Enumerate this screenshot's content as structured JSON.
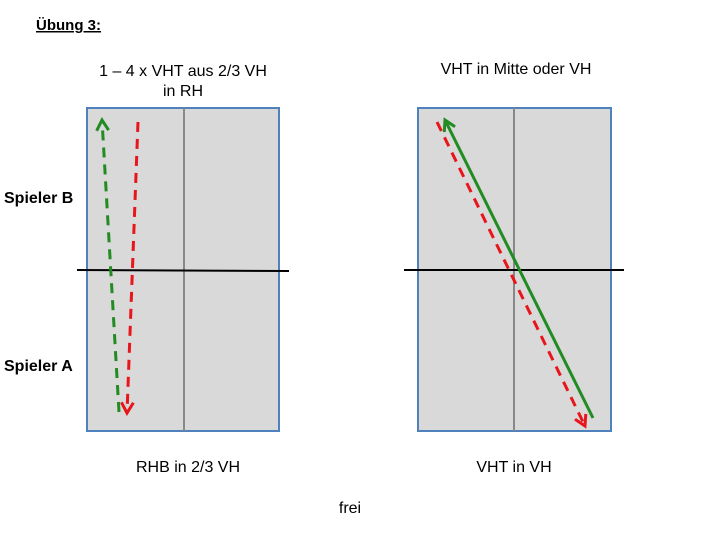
{
  "header": {
    "title": "Übung 3:"
  },
  "players": {
    "top": "Spieler B",
    "bottom": "Spieler A"
  },
  "tables": [
    {
      "top_caption_lines": [
        "1 – 4 x VHT aus 2/3 VH",
        "in RH"
      ],
      "bottom_caption": "RHB in 2/3 VH"
    },
    {
      "top_caption_lines": [
        "VHT in Mitte oder VH"
      ],
      "bottom_caption": "VHT in VH"
    }
  ],
  "footer": "frei"
}
